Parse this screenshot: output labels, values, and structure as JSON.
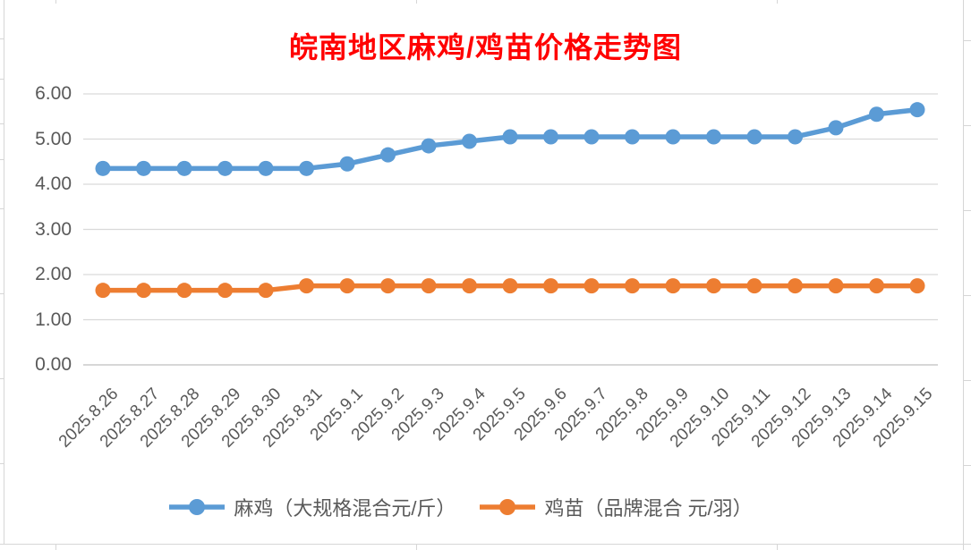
{
  "chart_data": {
    "type": "line",
    "title": "皖南地区麻鸡/鸡苗价格走势图",
    "title_color": "#ff0000",
    "categories": [
      "2025.8.26",
      "2025.8.27",
      "2025.8.28",
      "2025.8.29",
      "2025.8.30",
      "2025.8.31",
      "2025.9.1",
      "2025.9.2",
      "2025.9.3",
      "2025.9.4",
      "2025.9.5",
      "2025.9.6",
      "2025.9.7",
      "2025.9.8",
      "2025.9.9",
      "2025.9.10",
      "2025.9.11",
      "2025.9.12",
      "2025.9.13",
      "2025.9.14",
      "2025.9.15"
    ],
    "series": [
      {
        "name": "麻鸡（大规格混合元/斤）",
        "color": "#5B9BD5",
        "values": [
          4.35,
          4.35,
          4.35,
          4.35,
          4.35,
          4.35,
          4.45,
          4.65,
          4.85,
          4.95,
          5.05,
          5.05,
          5.05,
          5.05,
          5.05,
          5.05,
          5.05,
          5.05,
          5.25,
          5.55,
          5.65
        ]
      },
      {
        "name": "鸡苗（品牌混合 元/羽）",
        "color": "#ED7D31",
        "values": [
          1.65,
          1.65,
          1.65,
          1.65,
          1.65,
          1.75,
          1.75,
          1.75,
          1.75,
          1.75,
          1.75,
          1.75,
          1.75,
          1.75,
          1.75,
          1.75,
          1.75,
          1.75,
          1.75,
          1.75,
          1.75
        ]
      }
    ],
    "y_ticks": [
      "0.00",
      "1.00",
      "2.00",
      "3.00",
      "4.00",
      "5.00",
      "6.00"
    ],
    "ylim": [
      0,
      6
    ],
    "grid": true,
    "legend_position": "bottom",
    "axis_text_color": "#595959",
    "gridline_color": "#D9D9D9",
    "axis_line_color": "#BFBFBF"
  }
}
